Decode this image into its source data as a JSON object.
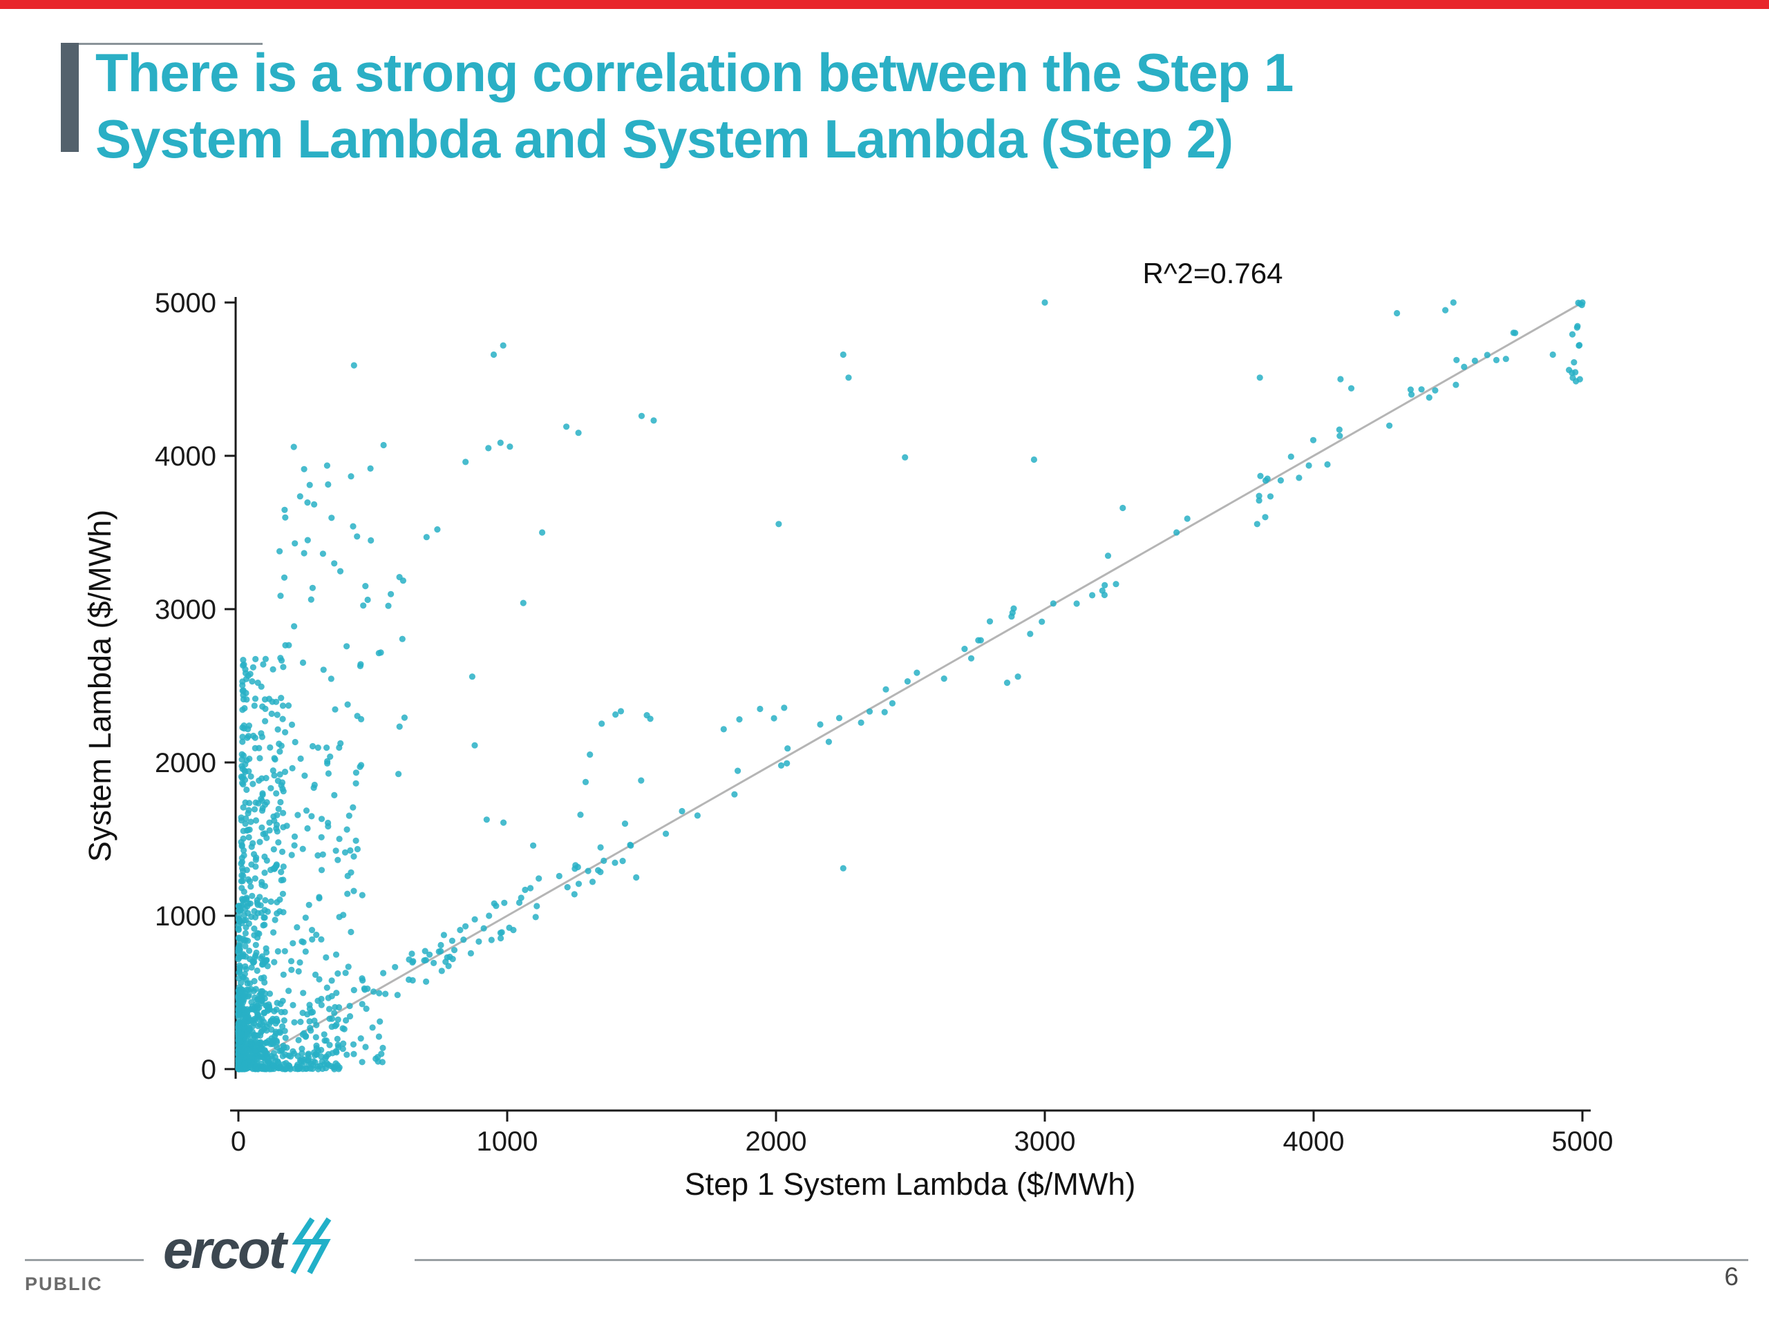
{
  "slide": {
    "title_line1": "There is a strong correlation between the Step 1",
    "title_line2": "System Lambda and System Lambda (Step 2)",
    "title_color": "#2aafc5",
    "top_bar_color": "#e8252b"
  },
  "footer": {
    "logo_text": "ercot",
    "public_label": "PUBLIC",
    "page_number": "6"
  },
  "chart_data": {
    "type": "scatter",
    "annotation": "R^2=0.764",
    "xlabel": "Step 1 System Lambda ($/MWh)",
    "ylabel": "System Lambda ($/MWh)",
    "xlim": [
      0,
      5000
    ],
    "ylim": [
      0,
      5000
    ],
    "x_ticks": [
      0,
      1000,
      2000,
      3000,
      4000,
      5000
    ],
    "y_ticks": [
      0,
      1000,
      2000,
      3000,
      4000,
      5000
    ],
    "grid": false,
    "legend": "none",
    "point_color": "#28b0c5",
    "ref_line": {
      "x0": 0,
      "y0": 0,
      "x1": 5000,
      "y1": 5000,
      "color": "#b5b5b5"
    },
    "seed": 42,
    "points": [
      [
        430,
        4590
      ],
      [
        950,
        4660
      ],
      [
        985,
        4720
      ],
      [
        930,
        4050
      ],
      [
        975,
        4085
      ],
      [
        1010,
        4060
      ],
      [
        845,
        3960
      ],
      [
        1220,
        4190
      ],
      [
        1265,
        4150
      ],
      [
        1500,
        4260
      ],
      [
        1545,
        4230
      ],
      [
        2250,
        4660
      ],
      [
        2270,
        4510
      ],
      [
        1130,
        3500
      ],
      [
        2010,
        3555
      ],
      [
        2480,
        3990
      ],
      [
        2960,
        3975
      ],
      [
        3000,
        5000
      ],
      [
        2900,
        2560
      ],
      [
        2860,
        2520
      ],
      [
        3290,
        3660
      ],
      [
        3490,
        3500
      ],
      [
        3530,
        3590
      ],
      [
        3790,
        3555
      ],
      [
        3820,
        3600
      ],
      [
        3800,
        4510
      ],
      [
        4140,
        4440
      ],
      [
        4100,
        4500
      ],
      [
        4490,
        4950
      ],
      [
        4520,
        5000
      ],
      [
        4310,
        4930
      ],
      [
        4890,
        4660
      ],
      [
        4950,
        4560
      ],
      [
        2250,
        1310
      ],
      [
        700,
        3470
      ],
      [
        740,
        3520
      ],
      [
        1060,
        3040
      ],
      [
        540,
        4070
      ],
      [
        1480,
        1250
      ],
      [
        1250,
        1140
      ],
      [
        870,
        2560
      ],
      [
        5000,
        5000
      ],
      [
        4600,
        4620
      ],
      [
        4560,
        4580
      ],
      [
        4430,
        4380
      ]
    ],
    "clusters": [
      {
        "type": "box",
        "x0": 0,
        "x1": 380,
        "xp": 2.6,
        "y0": 0,
        "y1": 520,
        "yp": 2.2,
        "count": 520
      },
      {
        "type": "box",
        "x0": 0,
        "x1": 110,
        "xp": 2.0,
        "y0": 0,
        "y1": 1080,
        "yp": 1.3,
        "count": 260
      },
      {
        "type": "box",
        "x0": 10,
        "x1": 170,
        "xp": 1.8,
        "y0": 1050,
        "y1": 2080,
        "yp": 1.0,
        "count": 130
      },
      {
        "type": "box",
        "x0": 15,
        "x1": 170,
        "xp": 1.6,
        "y0": 2080,
        "y1": 2680,
        "yp": 1.0,
        "count": 60
      },
      {
        "type": "box",
        "x0": 130,
        "x1": 470,
        "xp": 1.4,
        "y0": 520,
        "y1": 2150,
        "yp": 1.0,
        "count": 110
      },
      {
        "type": "box",
        "x0": 150,
        "x1": 620,
        "xp": 1.2,
        "y0": 2150,
        "y1": 3680,
        "yp": 1.0,
        "count": 46
      },
      {
        "type": "box",
        "x0": 180,
        "x1": 540,
        "xp": 1.0,
        "y0": 3680,
        "y1": 4120,
        "yp": 1.0,
        "count": 10
      },
      {
        "type": "box",
        "x0": 350,
        "x1": 560,
        "xp": 1.0,
        "y0": 40,
        "y1": 420,
        "yp": 1.5,
        "count": 25
      },
      {
        "type": "band",
        "x0": 420,
        "x1": 1350,
        "spread": 130,
        "count": 70
      },
      {
        "type": "band",
        "x0": 1350,
        "x1": 2650,
        "spread": 90,
        "count": 22
      },
      {
        "type": "band",
        "x0": 2650,
        "x1": 3350,
        "spread": 130,
        "count": 18
      },
      {
        "type": "band",
        "x0": 3750,
        "x1": 4750,
        "spread": 110,
        "count": 26
      },
      {
        "type": "box",
        "x0": 4960,
        "x1": 5000,
        "xp": 1.0,
        "y0": 4420,
        "y1": 5000,
        "yp": 1.0,
        "count": 14
      },
      {
        "type": "box",
        "x0": 850,
        "x1": 2350,
        "xp": 1.0,
        "y0": 2200,
        "y1": 2360,
        "yp": 1.0,
        "count": 12
      },
      {
        "type": "box",
        "x0": 550,
        "x1": 1550,
        "xp": 1.0,
        "y0": 1450,
        "y1": 2150,
        "yp": 1.0,
        "count": 10
      }
    ]
  }
}
